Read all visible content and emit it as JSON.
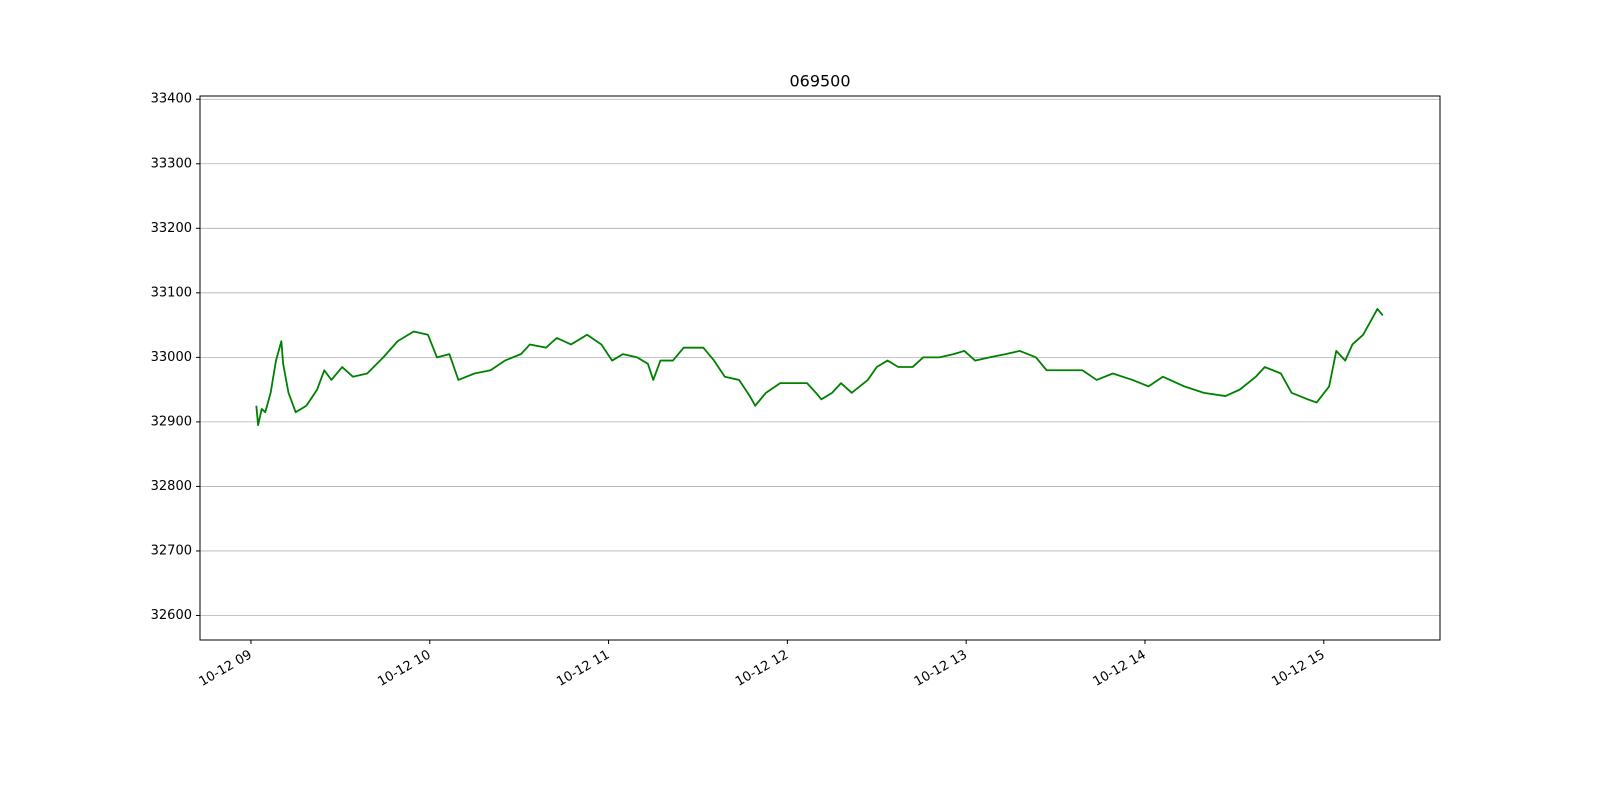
{
  "chart_data": {
    "type": "line",
    "title": "069500",
    "color": "#008000",
    "grid": "y",
    "x": [
      9.03,
      9.04,
      9.06,
      9.08,
      9.11,
      9.14,
      9.17,
      9.18,
      9.21,
      9.25,
      9.31,
      9.37,
      9.41,
      9.45,
      9.51,
      9.57,
      9.65,
      9.74,
      9.82,
      9.91,
      9.99,
      10.04,
      10.11,
      10.16,
      10.25,
      10.34,
      10.42,
      10.51,
      10.56,
      10.65,
      10.71,
      10.79,
      10.88,
      10.96,
      11.02,
      11.08,
      11.16,
      11.22,
      11.25,
      11.29,
      11.36,
      11.42,
      11.53,
      11.59,
      11.65,
      11.73,
      11.79,
      11.82,
      11.88,
      11.96,
      12.11,
      12.16,
      12.19,
      12.25,
      12.3,
      12.36,
      12.45,
      12.5,
      12.56,
      12.62,
      12.7,
      12.76,
      12.85,
      12.93,
      12.99,
      13.05,
      13.13,
      13.22,
      13.3,
      13.39,
      13.45,
      13.53,
      13.65,
      13.73,
      13.82,
      13.93,
      14.02,
      14.1,
      14.22,
      14.33,
      14.45,
      14.53,
      14.62,
      14.67,
      14.76,
      14.82,
      14.91,
      14.96,
      15.03,
      15.07,
      15.12,
      15.16,
      15.22,
      15.27,
      15.3,
      15.33
    ],
    "values": [
      32925,
      32895,
      32920,
      32915,
      32945,
      32995,
      33025,
      32990,
      32945,
      32915,
      32925,
      32950,
      32980,
      32965,
      32985,
      32970,
      32975,
      33000,
      33025,
      33040,
      33035,
      33000,
      33005,
      32965,
      32975,
      32980,
      32995,
      33005,
      33020,
      33015,
      33030,
      33020,
      33035,
      33020,
      32995,
      33005,
      33000,
      32990,
      32965,
      32995,
      32995,
      33015,
      33015,
      32995,
      32970,
      32965,
      32940,
      32925,
      32945,
      32960,
      32960,
      32945,
      32935,
      32945,
      32960,
      32945,
      32965,
      32985,
      32995,
      32985,
      32985,
      33000,
      33000,
      33005,
      33010,
      32995,
      33000,
      33005,
      33010,
      33000,
      32980,
      32980,
      32980,
      32965,
      32975,
      32965,
      32955,
      32970,
      32955,
      32945,
      32940,
      32950,
      32970,
      32985,
      32975,
      32945,
      32935,
      32930,
      32955,
      33010,
      32995,
      33020,
      33035,
      33060,
      33075,
      33065
    ],
    "xlim": [
      8.715,
      15.65
    ],
    "xticks": [
      {
        "value": 9,
        "label": "10-12 09"
      },
      {
        "value": 10,
        "label": "10-12 10"
      },
      {
        "value": 11,
        "label": "10-12 11"
      },
      {
        "value": 12,
        "label": "10-12 12"
      },
      {
        "value": 13,
        "label": "10-12 13"
      },
      {
        "value": 14,
        "label": "10-12 14"
      },
      {
        "value": 15,
        "label": "10-12 15"
      }
    ],
    "ylim": [
      32562,
      33405
    ],
    "yticks": [
      32600,
      32700,
      32800,
      32900,
      33000,
      33100,
      33200,
      33300,
      33400
    ]
  }
}
